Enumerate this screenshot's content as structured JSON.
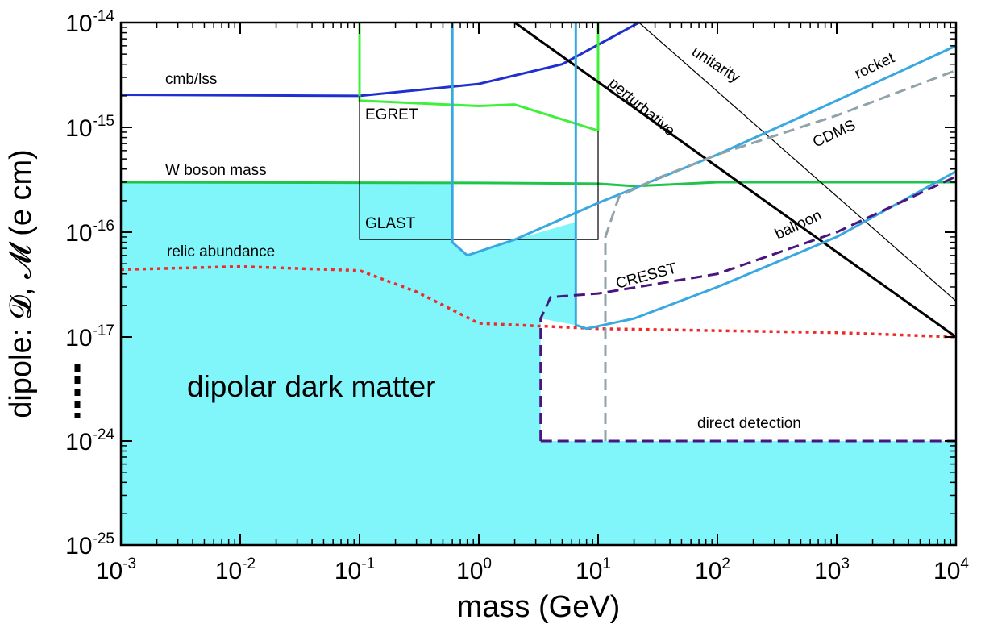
{
  "chart_data": {
    "type": "line",
    "xlabel": "mass (GeV)",
    "ylabel": "dipole: 𝓓, 𝓜 (e cm)",
    "x_scale": "log",
    "y_scale": "log (broken axis)",
    "xlim": [
      0.001,
      10000
    ],
    "y_ticks_top": [
      "10^-14",
      "10^-15",
      "10^-16",
      "10^-17"
    ],
    "y_ticks_bottom": [
      "10^-24",
      "10^-25"
    ],
    "x_tick_labels": [
      {
        "base": "10",
        "exp": "-3"
      },
      {
        "base": "10",
        "exp": "-2"
      },
      {
        "base": "10",
        "exp": "-1"
      },
      {
        "base": "10",
        "exp": "0"
      },
      {
        "base": "10",
        "exp": "1"
      },
      {
        "base": "10",
        "exp": "2"
      },
      {
        "base": "10",
        "exp": "3"
      },
      {
        "base": "10",
        "exp": "4"
      }
    ],
    "y_tick_labels": [
      {
        "base": "10",
        "exp": "-14",
        "value": -14
      },
      {
        "base": "10",
        "exp": "-15",
        "value": -15
      },
      {
        "base": "10",
        "exp": "-16",
        "value": -16
      },
      {
        "base": "10",
        "exp": "-17",
        "value": -17
      },
      {
        "base": "10",
        "exp": "-24",
        "value": -24
      },
      {
        "base": "10",
        "exp": "-25",
        "value": -25
      }
    ],
    "allowed_region": {
      "name": "dipolar dark matter",
      "color": "#80f6fa"
    },
    "series": [
      {
        "name": "cmb/lss",
        "color": "#1f2fd0",
        "style": "solid",
        "points": [
          [
            0.001,
            2.05e-15
          ],
          [
            0.1,
            2e-15
          ],
          [
            1,
            2.6e-15
          ],
          [
            5,
            4e-15
          ],
          [
            22,
            1e-14
          ]
        ]
      },
      {
        "name": "W boson mass",
        "color": "#1fc44a",
        "style": "solid",
        "points": [
          [
            0.001,
            3e-16
          ],
          [
            1,
            2.95e-16
          ],
          [
            10,
            2.9e-16
          ],
          [
            20,
            2.75e-16
          ],
          [
            40,
            2.85e-16
          ],
          [
            100,
            3e-16
          ],
          [
            10000,
            3e-16
          ]
        ]
      },
      {
        "name": "EGRET",
        "color": "#3ef03a",
        "style": "solid",
        "points": [
          [
            0.1,
            1e-14
          ],
          [
            0.1,
            1.8e-15
          ],
          [
            1,
            1.6e-15
          ],
          [
            2,
            1.65e-15
          ],
          [
            10,
            9.3e-16
          ],
          [
            10,
            1e-14
          ]
        ]
      },
      {
        "name": "GLAST",
        "color": "#000000",
        "style": "thin",
        "points": [
          [
            0.1,
            2e-15
          ],
          [
            0.1,
            8.5e-17
          ],
          [
            10,
            8.5e-17
          ],
          [
            10,
            9.3e-16
          ]
        ]
      },
      {
        "name": "relic abundance",
        "color": "#ee2b2b",
        "style": "dotted",
        "points": [
          [
            0.001,
            4.4e-17
          ],
          [
            0.01,
            4.7e-17
          ],
          [
            0.1,
            4.3e-17
          ],
          [
            0.3,
            2.7e-17
          ],
          [
            1,
            1.35e-17
          ],
          [
            10,
            1.2e-17
          ],
          [
            1000,
            1.1e-17
          ],
          [
            10000,
            6.5e-18
          ]
        ]
      },
      {
        "name": "perturbative",
        "color": "#000000",
        "style": "solid",
        "points": [
          [
            2,
            1e-14
          ],
          [
            10000,
            2.5e-18
          ]
        ]
      },
      {
        "name": "unitarity",
        "color": "#000000",
        "style": "thin",
        "points": [
          [
            22,
            1e-14
          ],
          [
            10000,
            2.2e-17
          ]
        ]
      },
      {
        "name": "rocket",
        "color": "#3aa8e0",
        "style": "solid",
        "points": [
          [
            0.6,
            1e-14
          ],
          [
            0.6,
            8e-17
          ],
          [
            0.8,
            6e-17
          ],
          [
            2,
            8.5e-17
          ],
          [
            10,
            1.9e-16
          ],
          [
            100,
            5.5e-16
          ],
          [
            1000,
            1.8e-15
          ],
          [
            10000,
            6e-15
          ]
        ]
      },
      {
        "name": "balloon",
        "color": "#3aa8e0",
        "style": "solid",
        "points": [
          [
            6.5,
            1e-14
          ],
          [
            6.5,
            1.3e-17
          ],
          [
            8,
            1.2e-17
          ],
          [
            20,
            1.5e-17
          ],
          [
            100,
            3e-17
          ],
          [
            1000,
            9e-17
          ],
          [
            10000,
            3.8e-16
          ]
        ]
      },
      {
        "name": "CDMS",
        "color": "#8fa3a8",
        "style": "dashed",
        "points": [
          [
            11.5,
            1e-24
          ],
          [
            11.5,
            9e-17
          ],
          [
            15,
            2.2e-16
          ],
          [
            30,
            3.2e-16
          ],
          [
            100,
            5.5e-16
          ],
          [
            1000,
            1.3e-15
          ],
          [
            10000,
            3.5e-15
          ]
        ]
      },
      {
        "name": "CRESST",
        "color": "#4a1580",
        "style": "dashed",
        "points": [
          [
            3.3,
            1e-24
          ],
          [
            3.3,
            1.5e-17
          ],
          [
            4,
            2.4e-17
          ],
          [
            10,
            2.6e-17
          ],
          [
            100,
            4e-17
          ],
          [
            1000,
            1e-16
          ],
          [
            10000,
            3.4e-16
          ]
        ]
      },
      {
        "name": "direct detection",
        "color": "#4a1580",
        "style": "dashed",
        "points": [
          [
            3.3,
            1e-24
          ],
          [
            10000,
            1e-24
          ]
        ]
      }
    ]
  }
}
